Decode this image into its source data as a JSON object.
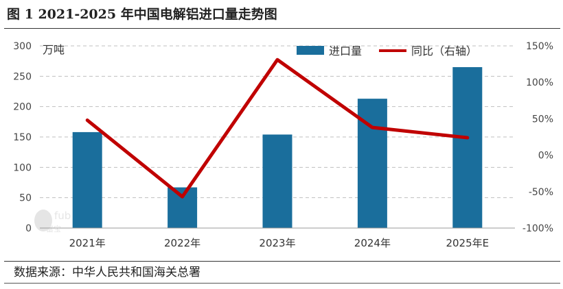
{
  "title": "图 1 2021-2025 年中国电解铝进口量走势图",
  "source": "数据来源：中华人民共和国海关总署",
  "watermark_text": "fub 富宝",
  "colors": {
    "bar": "#1a6e9c",
    "line": "#c00000",
    "grid": "#bfbfbf"
  },
  "chart_data": {
    "type": "bar",
    "categories": [
      "2021年",
      "2022年",
      "2023年",
      "2024年",
      "2025年E"
    ],
    "series": [
      {
        "name": "进口量",
        "type": "bar",
        "axis": "left",
        "values": [
          158,
          67,
          154,
          213,
          265
        ]
      },
      {
        "name": "同比（右轴）",
        "type": "line",
        "axis": "right",
        "values": [
          48,
          -57,
          131,
          38,
          24
        ]
      }
    ],
    "y_left": {
      "unit": "万吨",
      "min": 0,
      "max": 300,
      "step": 50,
      "ticks": [
        "0",
        "50",
        "100",
        "150",
        "200",
        "250",
        "300"
      ]
    },
    "y_right": {
      "min": -100,
      "max": 150,
      "step": 50,
      "ticks": [
        "-100%",
        "-50%",
        "0%",
        "50%",
        "100%",
        "150%"
      ]
    },
    "grid": true,
    "legend_position": "top-right"
  }
}
